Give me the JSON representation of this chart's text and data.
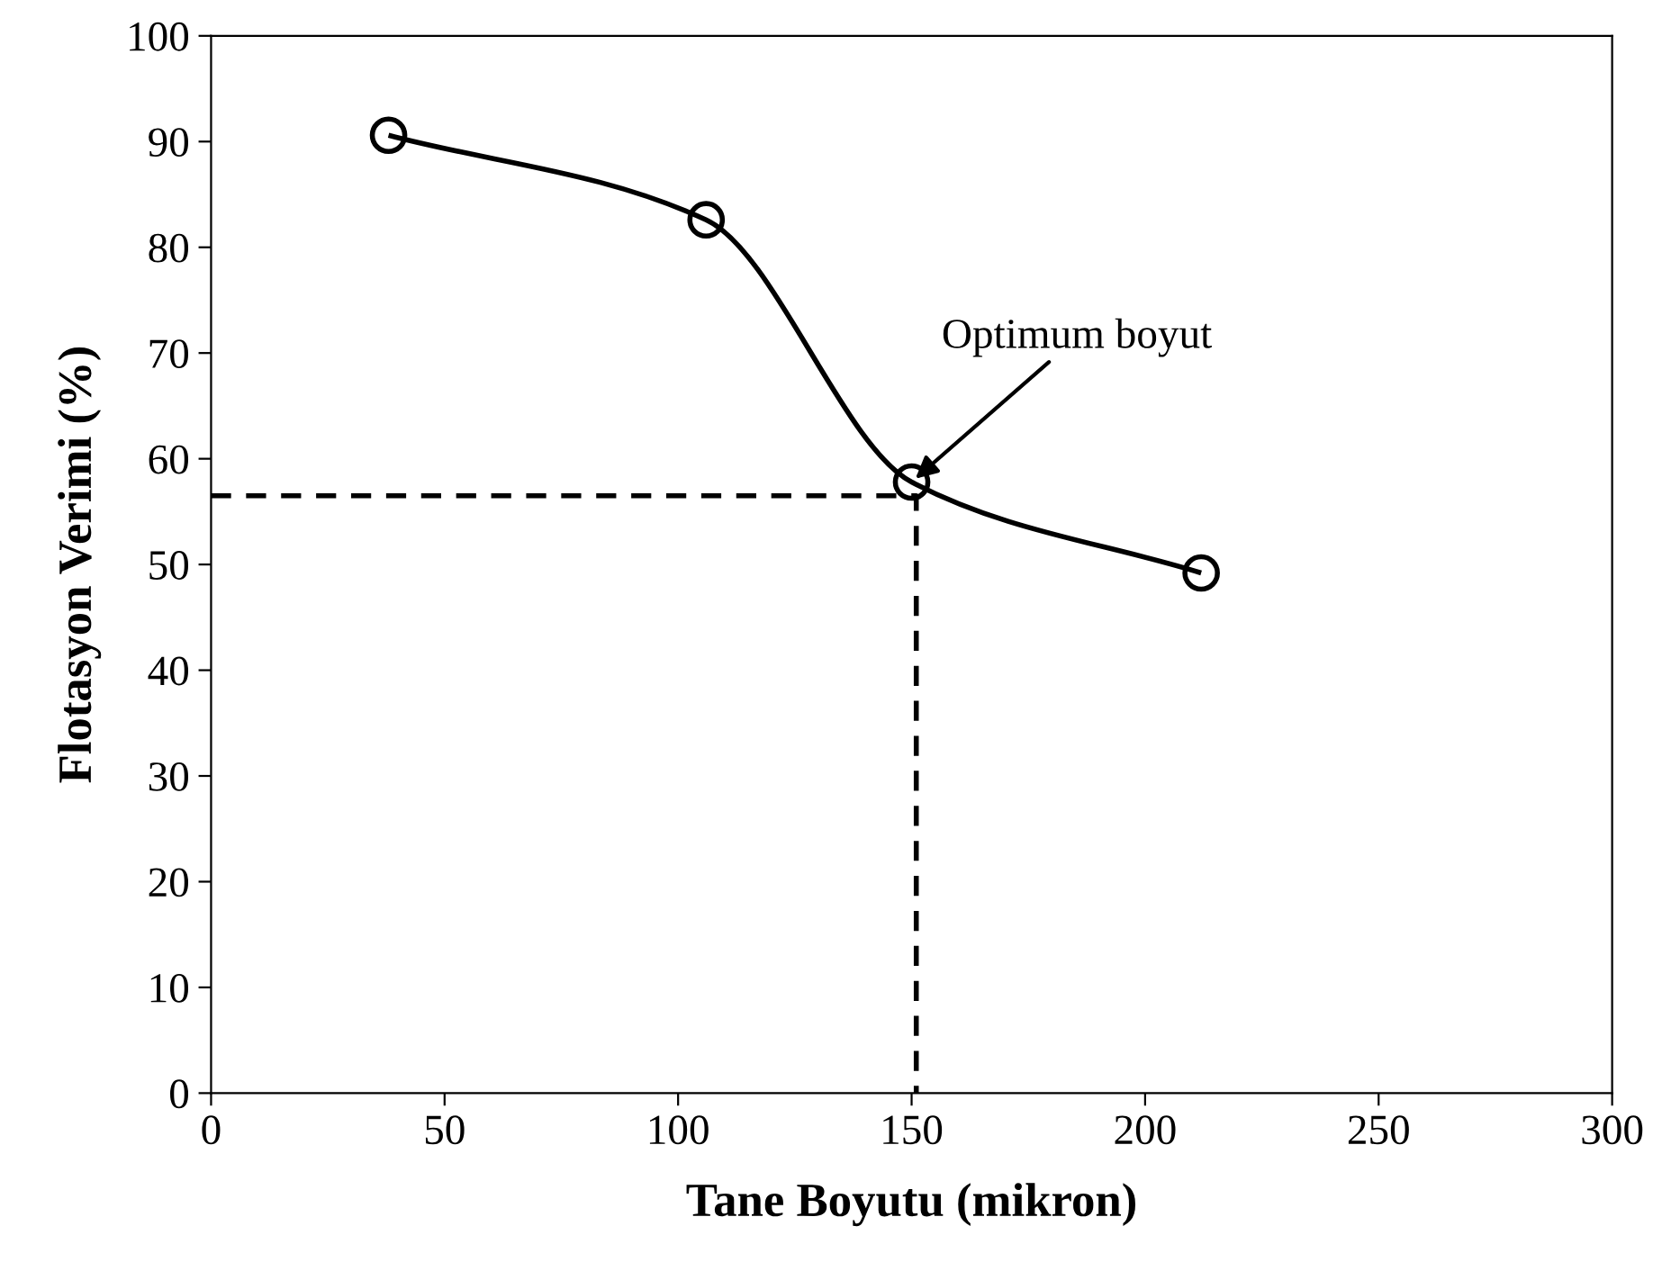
{
  "chart_data": {
    "type": "line",
    "xlabel": "Tane Boyutu (mikron)",
    "ylabel": "Flotasyon Verimi (%)",
    "series": [
      {
        "marker": "circle",
        "line_style": "solid",
        "color": "#000000",
        "x": [
          38,
          106,
          150,
          212
        ],
        "values": [
          90.6,
          82.6,
          57.8,
          49.2
        ]
      },
      {
        "marker": "none",
        "line_style": "dashed",
        "color": "#000000",
        "x": [
          0,
          151,
          151
        ],
        "values": [
          56.5,
          56.5,
          0
        ]
      }
    ],
    "annotations": [
      {
        "text": "Optimum boyut",
        "x": 150,
        "y": 57.8
      }
    ],
    "xlim": [
      0,
      300
    ],
    "xticks": [
      0,
      50,
      100,
      150,
      200,
      250,
      300
    ],
    "ylim": [
      0,
      100
    ],
    "yticks": [
      0,
      10,
      20,
      30,
      40,
      50,
      60,
      70,
      80,
      90,
      100
    ],
    "grid": false
  }
}
